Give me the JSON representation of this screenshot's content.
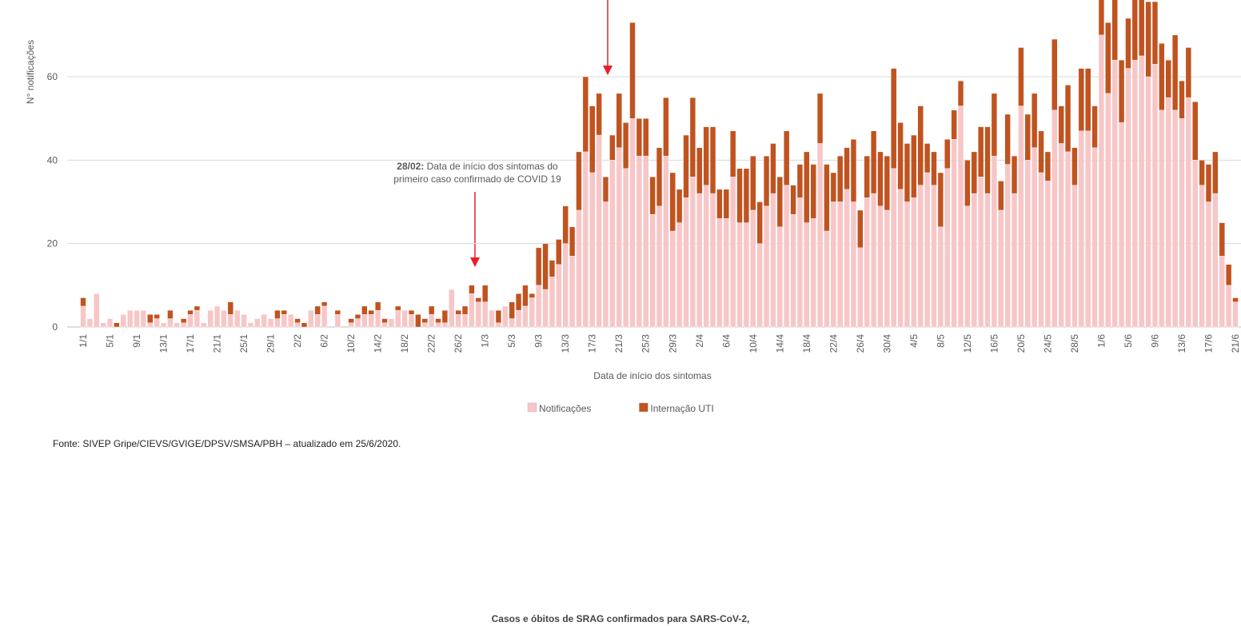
{
  "chart_data": {
    "type": "bar",
    "stacked": true,
    "y_label": "N° notificações",
    "x_label": "Data de início dos sintomas",
    "annotation": {
      "bold": "28/02:",
      "lines": [
        "Data de início dos sintomas do",
        "primeiro caso confirmado de COVID 19"
      ]
    },
    "source": "Fonte: SIVEP Gripe/CIEVS/GVIGE/DPSV/SMSA/PBH – atualizado em 25/6/2020.",
    "next_title": "Casos e óbitos de SRAG confirmados para SARS-CoV-2,",
    "ylim": [
      0,
      80
    ],
    "yticks": [
      0,
      20,
      40,
      60
    ],
    "grid": true,
    "legend": "bottom",
    "categories": [
      "1/1",
      null,
      null,
      null,
      "5/1",
      null,
      null,
      null,
      "9/1",
      null,
      null,
      null,
      "13/1",
      null,
      null,
      null,
      "17/1",
      null,
      null,
      null,
      "21/1",
      null,
      null,
      null,
      "25/1",
      null,
      null,
      null,
      "29/1",
      null,
      null,
      null,
      "2/2",
      null,
      null,
      null,
      "6/2",
      null,
      null,
      null,
      "10/2",
      null,
      null,
      null,
      "14/2",
      null,
      null,
      null,
      "18/2",
      null,
      null,
      null,
      "22/2",
      null,
      null,
      null,
      "26/2",
      null,
      null,
      null,
      "1/3",
      null,
      null,
      null,
      "5/3",
      null,
      null,
      null,
      "9/3",
      null,
      null,
      null,
      "13/3",
      null,
      null,
      null,
      "17/3",
      null,
      null,
      null,
      "21/3",
      null,
      null,
      null,
      "25/3",
      null,
      null,
      null,
      "29/3",
      null,
      null,
      null,
      "2/4",
      null,
      null,
      null,
      "6/4",
      null,
      null,
      null,
      "10/4",
      null,
      null,
      null,
      "14/4",
      null,
      null,
      null,
      "18/4",
      null,
      null,
      null,
      "22/4",
      null,
      null,
      null,
      "26/4",
      null,
      null,
      null,
      "30/4",
      null,
      null,
      null,
      "4/5",
      null,
      null,
      null,
      "8/5",
      null,
      null,
      null,
      "12/5",
      null,
      null,
      null,
      "16/5",
      null,
      null,
      null,
      "20/5",
      null,
      null,
      null,
      "24/5",
      null,
      null,
      null,
      "28/5",
      null,
      null,
      null,
      "1/6",
      null,
      null,
      null,
      "5/6",
      null,
      null,
      null,
      "9/6",
      null,
      null,
      null,
      "13/6",
      null,
      null,
      null,
      "17/6",
      null,
      null,
      null,
      "21/6"
    ],
    "series": [
      {
        "name": "Notificações",
        "color": "#f7c6c7",
        "values": [
          5,
          2,
          8,
          1,
          2,
          0,
          3,
          4,
          4,
          4,
          1,
          2,
          1,
          2,
          1,
          1,
          3,
          4,
          1,
          4,
          5,
          4,
          3,
          4,
          3,
          1,
          2,
          3,
          2,
          2,
          3,
          3,
          1,
          0,
          4,
          3,
          5,
          0,
          3,
          0,
          1,
          2,
          3,
          3,
          4,
          1,
          2,
          4,
          4,
          3,
          0,
          1,
          3,
          1,
          1,
          9,
          3,
          3,
          8,
          6,
          6,
          4,
          1,
          5,
          2,
          4,
          5,
          7,
          10,
          9,
          12,
          15,
          20,
          17,
          28,
          42,
          37,
          46,
          30,
          40,
          43,
          38,
          50,
          41,
          41,
          27,
          29,
          41,
          23,
          25,
          31,
          36,
          32,
          34,
          32,
          26,
          26,
          36,
          25,
          25,
          28,
          20,
          29,
          32,
          24,
          34,
          27,
          31,
          25,
          26,
          44,
          23,
          30,
          30,
          33,
          30,
          19,
          31,
          32,
          29,
          28,
          38,
          33,
          30,
          31,
          34,
          37,
          34,
          24,
          38,
          45,
          53,
          29,
          32,
          36,
          32,
          41,
          28,
          39,
          32,
          53,
          40,
          43,
          37,
          35,
          52,
          44,
          42,
          34,
          47,
          47,
          43,
          70,
          56,
          64,
          49,
          62,
          64,
          65,
          60,
          63,
          52,
          55,
          52,
          50,
          55,
          40,
          34,
          30,
          32,
          17,
          10,
          6
        ]
      },
      {
        "name": "Internação UTI",
        "color": "#c0531f",
        "values": [
          2,
          0,
          0,
          0,
          0,
          1,
          0,
          0,
          0,
          0,
          2,
          1,
          0,
          2,
          0,
          1,
          1,
          1,
          0,
          0,
          0,
          0,
          3,
          0,
          0,
          0,
          0,
          0,
          0,
          2,
          1,
          0,
          1,
          1,
          0,
          2,
          1,
          0,
          1,
          0,
          1,
          1,
          2,
          1,
          2,
          1,
          0,
          1,
          0,
          1,
          3,
          1,
          2,
          1,
          3,
          0,
          1,
          2,
          2,
          1,
          4,
          0,
          3,
          0,
          4,
          4,
          5,
          1,
          9,
          11,
          4,
          6,
          9,
          7,
          14,
          18,
          16,
          10,
          6,
          6,
          13,
          11,
          23,
          9,
          9,
          9,
          14,
          14,
          14,
          8,
          15,
          19,
          11,
          14,
          16,
          7,
          7,
          11,
          13,
          13,
          13,
          10,
          12,
          12,
          12,
          13,
          7,
          8,
          17,
          13,
          12,
          16,
          7,
          11,
          10,
          15,
          9,
          10,
          15,
          13,
          13,
          24,
          16,
          14,
          15,
          19,
          7,
          8,
          13,
          7,
          7,
          6,
          11,
          10,
          12,
          16,
          15,
          7,
          12,
          9,
          14,
          11,
          13,
          10,
          7,
          17,
          9,
          16,
          9,
          15,
          15,
          10,
          9,
          17,
          16,
          15,
          12,
          16,
          15,
          18,
          15,
          16,
          9,
          18,
          9,
          12,
          14,
          6,
          9,
          10,
          8,
          5,
          1
        ]
      }
    ]
  }
}
